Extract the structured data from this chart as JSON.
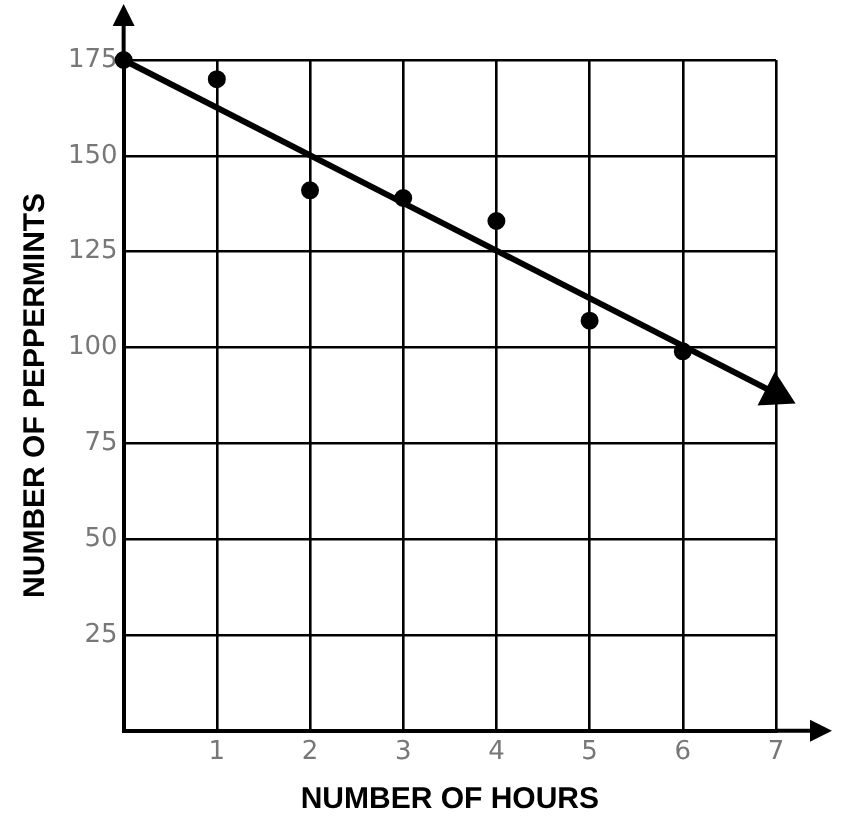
{
  "chart_data": {
    "type": "scatter",
    "xlabel": "NUMBER OF HOURS",
    "ylabel": "NUMBER OF PEPPERMINTS",
    "xlim": [
      0,
      7
    ],
    "xticks": [
      {
        "value": 0,
        "label": null
      },
      1,
      2,
      3,
      4,
      5,
      6,
      7
    ],
    "ylim": [
      0,
      175
    ],
    "yticks": [
      {
        "value": 0,
        "label": null
      },
      25,
      50,
      75,
      100,
      125,
      150,
      175
    ],
    "grid": true,
    "marker": "circle",
    "series": [
      {
        "color": "#000000",
        "x": [
          0,
          1,
          2,
          3,
          4,
          5,
          6
        ],
        "values": [
          175,
          170,
          141,
          139,
          133,
          107,
          99
        ]
      },
      {
        "type": "line",
        "color": "#000000",
        "x": [
          0,
          7
        ],
        "values": [
          175,
          88
        ],
        "line_style": "solid",
        "marker": "triangle"
      }
    ]
  }
}
